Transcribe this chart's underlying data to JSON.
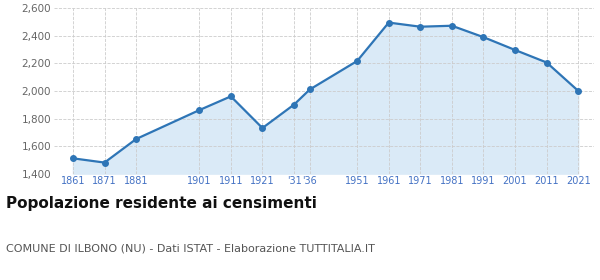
{
  "years": [
    1861,
    1871,
    1881,
    1901,
    1911,
    1921,
    1931,
    1936,
    1951,
    1961,
    1971,
    1981,
    1991,
    2001,
    2011,
    2021
  ],
  "population": [
    1511,
    1480,
    1651,
    1861,
    1961,
    1731,
    1901,
    2011,
    2218,
    2497,
    2467,
    2474,
    2391,
    2298,
    2207,
    2001
  ],
  "ylim": [
    1400,
    2600
  ],
  "yticks": [
    1400,
    1600,
    1800,
    2000,
    2200,
    2400,
    2600
  ],
  "xlim_left": 1855,
  "xlim_right": 2026,
  "line_color": "#2e75b6",
  "fill_color": "#daeaf7",
  "marker_size": 4,
  "line_width": 1.6,
  "bg_color": "#ffffff",
  "grid_color": "#cccccc",
  "title": "Popolazione residente ai censimenti",
  "subtitle": "COMUNE DI ILBONO (NU) - Dati ISTAT - Elaborazione TUTTITALIA.IT",
  "title_fontsize": 11,
  "subtitle_fontsize": 8,
  "tick_label_color": "#4472c4",
  "ytick_label_color": "#666666",
  "x_tick_positions": [
    1861,
    1871,
    1881,
    1901,
    1911,
    1921,
    1931,
    1936,
    1951,
    1961,
    1971,
    1981,
    1991,
    2001,
    2011,
    2021
  ],
  "x_tick_labels": [
    "1861",
    "1871",
    "1881",
    "1901",
    "1911",
    "1921",
    "'31",
    "'36",
    "1951",
    "1961",
    "1971",
    "1981",
    "1991",
    "2001",
    "2011",
    "2021"
  ]
}
